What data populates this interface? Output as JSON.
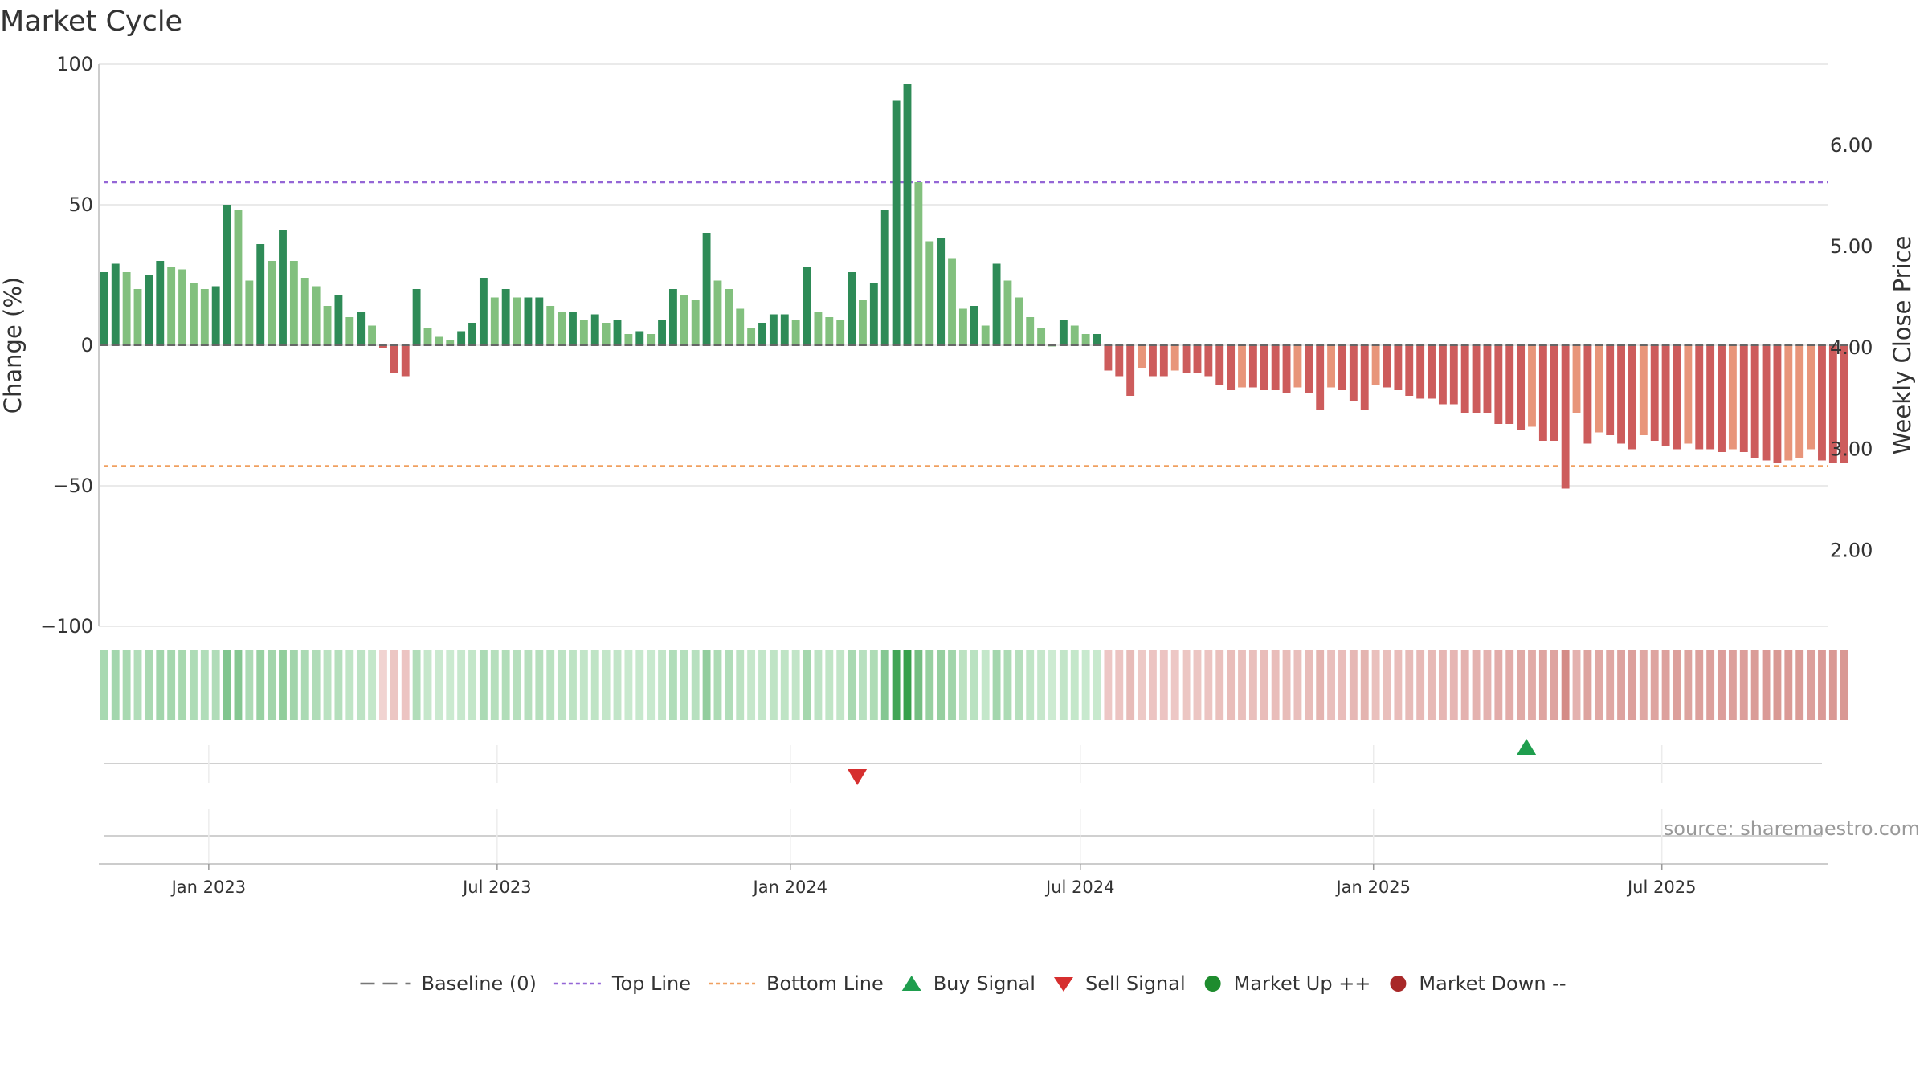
{
  "chart_data": {
    "type": "bar",
    "title": "Market Cycle",
    "ylabel": "Change (%)",
    "ylabel_right": "Weekly Close Price",
    "ylim": [
      -100,
      100
    ],
    "ylim_right": [
      1.25,
      6.8
    ],
    "yticks": [
      {
        "v": 100,
        "label": "100"
      },
      {
        "v": 50,
        "label": "50"
      },
      {
        "v": 0,
        "label": "0"
      },
      {
        "v": -50,
        "label": "−50"
      },
      {
        "v": -100,
        "label": "−100"
      }
    ],
    "yticks_right": [
      {
        "v": 6.0,
        "label": "6.00"
      },
      {
        "v": 5.0,
        "label": "5.00"
      },
      {
        "v": 4.0,
        "label": "4.00"
      },
      {
        "v": 3.0,
        "label": "3.00"
      },
      {
        "v": 2.0,
        "label": "2.00"
      }
    ],
    "x_start": "2022-10-24",
    "x_end": "2025-10-13",
    "bar_start": "2022-10-24",
    "bar_interval_days": 7,
    "x_ticks": [
      {
        "date": "2023-01-01",
        "label": "Jan 2023"
      },
      {
        "date": "2023-07-01",
        "label": "Jul 2023"
      },
      {
        "date": "2024-01-01",
        "label": "Jan 2024"
      },
      {
        "date": "2024-07-01",
        "label": "Jul 2024"
      },
      {
        "date": "2025-01-01",
        "label": "Jan 2025"
      },
      {
        "date": "2025-07-01",
        "label": "Jul 2025"
      }
    ],
    "top_line": 58,
    "bottom_line": -43,
    "values": [
      26,
      29,
      26,
      20,
      25,
      30,
      28,
      27,
      22,
      20,
      21,
      50,
      48,
      23,
      36,
      30,
      41,
      30,
      24,
      21,
      14,
      18,
      10,
      12,
      7,
      -1,
      -10,
      -11,
      20,
      6,
      3,
      2,
      5,
      8,
      24,
      17,
      20,
      17,
      17,
      17,
      14,
      12,
      12,
      9,
      11,
      8,
      9,
      4,
      5,
      4,
      9,
      20,
      18,
      16,
      40,
      23,
      20,
      13,
      6,
      8,
      11,
      11,
      9,
      28,
      12,
      10,
      9,
      26,
      16,
      22,
      48,
      87,
      93,
      58,
      37,
      38,
      31,
      13,
      14,
      7,
      29,
      23,
      17,
      10,
      6,
      0,
      9,
      7,
      4,
      4,
      -9,
      -11,
      -18,
      -8,
      -11,
      -11,
      -9,
      -10,
      -10,
      -11,
      -14,
      -16,
      -15,
      -15,
      -16,
      -16,
      -17,
      -15,
      -17,
      -23,
      -15,
      -16,
      -20,
      -23,
      -14,
      -15,
      -16,
      -18,
      -19,
      -19,
      -21,
      -21,
      -24,
      -24,
      -24,
      -28,
      -28,
      -30,
      -29,
      -34,
      -34,
      -51,
      -24,
      -35,
      -31,
      -32,
      -35,
      -37,
      -32,
      -34,
      -36,
      -37,
      -35,
      -37,
      -37,
      -38,
      -37,
      -38,
      -40,
      -41,
      -42,
      -41,
      -40,
      -37,
      -41,
      -42,
      -42
    ],
    "signals": [
      {
        "type": "sell",
        "date": "2024-02-12"
      },
      {
        "type": "buy",
        "date": "2025-04-07"
      }
    ],
    "legend": [
      {
        "key": "baseline",
        "label": "Baseline (0)",
        "color": "#777777"
      },
      {
        "key": "top",
        "label": "Top Line",
        "color": "#9466d6"
      },
      {
        "key": "bottom",
        "label": "Bottom Line",
        "color": "#f0a060"
      },
      {
        "key": "buy",
        "label": "Buy Signal",
        "color": "#1f9e4e"
      },
      {
        "key": "sell",
        "label": "Sell Signal",
        "color": "#d62f2f"
      },
      {
        "key": "up",
        "label": "Market Up ++",
        "color": "#1e8c2e"
      },
      {
        "key": "down",
        "label": "Market Down --",
        "color": "#a82828"
      }
    ],
    "legend_position": "bottom",
    "source": "source: sharemaestro.com",
    "colors": {
      "pos_dark": "#2e8b57",
      "pos_light": "#82c07e",
      "neg_dark": "#cd5c5c",
      "neg_light": "#e8957a",
      "grid": "#e4e4e4",
      "axis": "#cccccc"
    }
  }
}
